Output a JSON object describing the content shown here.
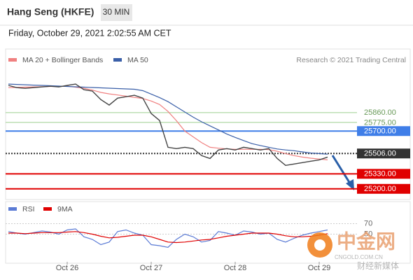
{
  "header": {
    "title": "Hang Seng (HKFE)",
    "interval": "30 MIN",
    "timestamp": "Friday, October 29, 2021 2:02:55 AM CET"
  },
  "watermark": {
    "name": "中金网",
    "domain": "CNGOLD.COM.CN",
    "tagline": "财经新媒体"
  },
  "chart_data": [
    {
      "type": "line",
      "credit": "Research © 2021 Trading Central",
      "ylim": [
        25120,
        26380
      ],
      "values": [
        26095,
        26076,
        26070,
        26076,
        26082,
        26088,
        26082,
        26095,
        26107,
        26058,
        26046,
        25973,
        25925,
        25985,
        25997,
        26010,
        25985,
        25852,
        25791,
        25560,
        25548,
        25560,
        25548,
        25488,
        25463,
        25536,
        25548,
        25536,
        25560,
        25548,
        25536,
        25548,
        25463,
        25403,
        25415,
        25427,
        25439,
        25451,
        25475
      ],
      "color": "#444444",
      "series": [
        {
          "name": "MA 20 + Bollinger Bands",
          "color": "#f08080",
          "values": [
            26076,
            26078,
            26080,
            26082,
            26084,
            26086,
            26087,
            26088,
            26080,
            26070,
            26055,
            26035,
            26022,
            26012,
            26002,
            25992,
            25982,
            25960,
            25930,
            25870,
            25790,
            25700,
            25650,
            25600,
            25560,
            25552,
            25546,
            25542,
            25542,
            25542,
            25542,
            25540,
            25525,
            25505,
            25488,
            25475,
            25465,
            25458,
            25451
          ]
        },
        {
          "name": "MA 50",
          "color": "#3a5fa8",
          "values": [
            26107,
            26104,
            26101,
            26098,
            26095,
            26092,
            26089,
            26086,
            26083,
            26080,
            26077,
            26074,
            26071,
            26068,
            26065,
            26062,
            26050,
            26020,
            25990,
            25955,
            25910,
            25865,
            25820,
            25780,
            25745,
            25710,
            25675,
            25645,
            25618,
            25591,
            25575,
            25560,
            25545,
            25537,
            25530,
            25520,
            25510,
            25505,
            25500
          ]
        }
      ],
      "levels": [
        {
          "value": 25860,
          "label": "25860.00",
          "color": "#9ccf8f"
        },
        {
          "value": 25775,
          "label": "25775.00",
          "color": "#9ccf8f"
        },
        {
          "value": 25700,
          "label": "25700.00",
          "color": "#3f7ee8"
        },
        {
          "value": 25506,
          "label": "25506.00",
          "color": "#333333"
        },
        {
          "value": 25330,
          "label": "25330.00",
          "color": "#e00000"
        },
        {
          "value": 25200,
          "label": "25200.00",
          "color": "#e00000"
        }
      ]
    },
    {
      "type": "line",
      "ylim": [
        0,
        100
      ],
      "yticks": [
        70,
        50
      ],
      "categories": [
        null,
        null,
        null,
        null,
        null,
        null,
        null,
        "Oct 26",
        null,
        null,
        null,
        null,
        null,
        null,
        null,
        null,
        null,
        "Oct 27",
        null,
        null,
        null,
        null,
        null,
        null,
        null,
        null,
        null,
        "Oct 28",
        null,
        null,
        null,
        null,
        null,
        null,
        null,
        null,
        null,
        "Oct 29",
        null
      ],
      "series": [
        {
          "name": "RSI",
          "color": "#5b7bd5",
          "values": [
            55,
            52,
            50,
            53,
            56,
            54,
            50,
            58,
            60,
            45,
            40,
            30,
            35,
            55,
            58,
            52,
            48,
            30,
            28,
            25,
            40,
            50,
            45,
            35,
            38,
            55,
            52,
            48,
            56,
            54,
            50,
            52,
            40,
            35,
            42,
            48,
            52,
            55,
            58
          ]
        },
        {
          "name": "9MA",
          "color": "#e00000",
          "values": [
            52,
            52,
            51,
            52,
            53,
            53,
            53,
            54,
            55,
            53,
            50,
            46,
            43,
            44,
            46,
            48,
            48,
            45,
            40,
            35,
            34,
            35,
            37,
            39,
            40,
            43,
            46,
            48,
            50,
            52,
            52,
            52,
            50,
            47,
            45,
            45,
            46,
            48,
            51
          ]
        }
      ]
    }
  ]
}
